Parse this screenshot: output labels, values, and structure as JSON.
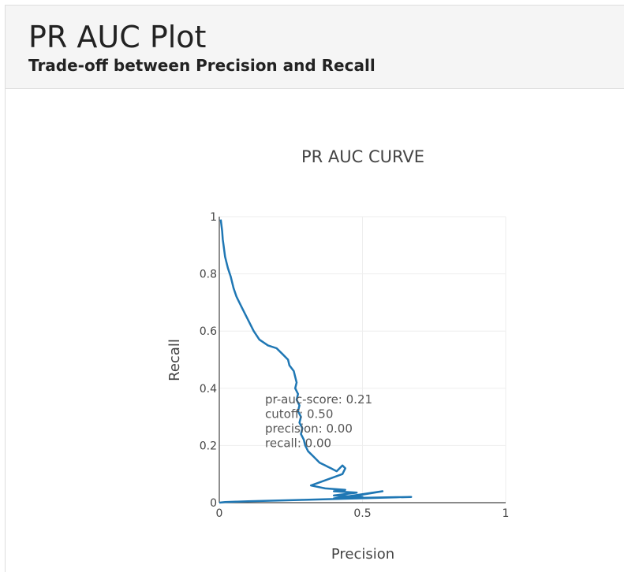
{
  "header": {
    "title": "PR AUC Plot",
    "subtitle": "Trade-off between Precision and Recall"
  },
  "colors": {
    "line": "#1f77b4",
    "grid": "#eeeeee",
    "axis_text": "#444444",
    "title_text": "#444444"
  },
  "chart_data": {
    "type": "line",
    "title": "PR AUC CURVE",
    "xlabel": "Precision",
    "ylabel": "Recall",
    "xlim": [
      0,
      1
    ],
    "ylim": [
      0,
      1
    ],
    "x_ticks": [
      {
        "value": 0,
        "label": "0"
      },
      {
        "value": 0.5,
        "label": "0.5"
      },
      {
        "value": 1,
        "label": "1"
      }
    ],
    "y_ticks": [
      {
        "value": 0,
        "label": "0"
      },
      {
        "value": 0.2,
        "label": "0.2"
      },
      {
        "value": 0.4,
        "label": "0.4"
      },
      {
        "value": 0.6,
        "label": "0.6"
      },
      {
        "value": 0.8,
        "label": "0.8"
      },
      {
        "value": 1,
        "label": "1"
      }
    ],
    "grid": true,
    "annotation_lines": [
      "pr-auc-score: 0.21",
      "cutoff: 0.50",
      "precision: 0.00",
      "recall: 0.00"
    ],
    "series": [
      {
        "x": [
          0.005,
          0.01,
          0.012,
          0.015,
          0.02,
          0.025,
          0.03,
          0.04,
          0.05,
          0.06,
          0.07,
          0.08,
          0.1,
          0.12,
          0.14,
          0.17,
          0.2,
          0.22,
          0.24,
          0.245,
          0.26,
          0.265,
          0.27,
          0.265,
          0.275,
          0.27,
          0.28,
          0.275,
          0.285,
          0.28,
          0.29,
          0.285,
          0.295,
          0.3,
          0.305,
          0.31,
          0.32,
          0.33,
          0.34,
          0.35,
          0.36,
          0.37,
          0.38,
          0.39,
          0.4,
          0.41,
          0.42,
          0.43,
          0.44,
          0.43,
          0.32,
          0.37,
          0.44,
          0.4,
          0.48,
          0.4,
          0.5,
          0.42,
          0.57,
          0.4,
          0.67,
          0.3,
          0.1,
          0.02,
          0.0
        ],
        "y": [
          0.99,
          0.95,
          0.92,
          0.9,
          0.86,
          0.84,
          0.82,
          0.79,
          0.75,
          0.72,
          0.7,
          0.68,
          0.64,
          0.6,
          0.57,
          0.55,
          0.54,
          0.52,
          0.5,
          0.48,
          0.46,
          0.44,
          0.42,
          0.4,
          0.38,
          0.36,
          0.34,
          0.32,
          0.3,
          0.28,
          0.26,
          0.24,
          0.22,
          0.2,
          0.19,
          0.18,
          0.17,
          0.16,
          0.15,
          0.14,
          0.135,
          0.13,
          0.125,
          0.12,
          0.115,
          0.11,
          0.12,
          0.13,
          0.12,
          0.1,
          0.06,
          0.05,
          0.045,
          0.04,
          0.035,
          0.025,
          0.02,
          0.015,
          0.04,
          0.015,
          0.02,
          0.01,
          0.005,
          0.002,
          0.0
        ]
      }
    ]
  }
}
